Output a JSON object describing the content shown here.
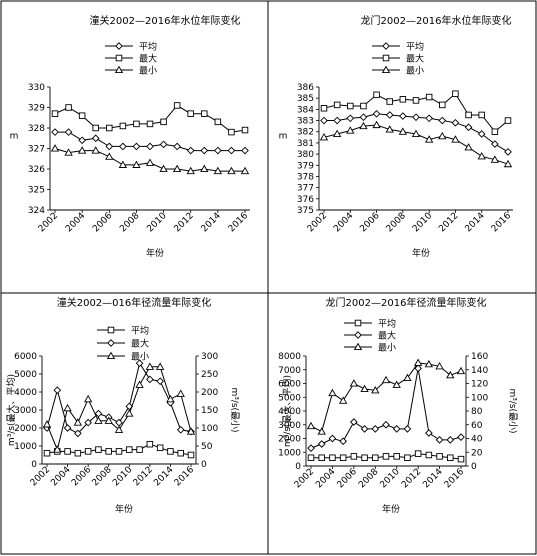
{
  "chart_data": [
    {
      "type": "line",
      "title": "潼关2002—2016年水位年际变化",
      "xlabel": "年份",
      "ylabel": "m",
      "x": [
        2002,
        2003,
        2004,
        2005,
        2006,
        2007,
        2008,
        2009,
        2010,
        2011,
        2012,
        2013,
        2014,
        2015,
        2016
      ],
      "xticks": [
        2002,
        2004,
        2006,
        2008,
        2010,
        2012,
        2014,
        2016
      ],
      "ylim": [
        324,
        330
      ],
      "yticks": [
        324,
        325,
        326,
        327,
        328,
        329,
        330
      ],
      "legend_position": "top-center",
      "series": [
        {
          "name": "平均",
          "marker": "diamond",
          "values": [
            327.8,
            327.8,
            327.4,
            327.5,
            327.1,
            327.1,
            327.1,
            327.1,
            327.2,
            327.1,
            326.9,
            326.9,
            326.9,
            326.9,
            326.9
          ]
        },
        {
          "name": "最大",
          "marker": "square",
          "values": [
            328.7,
            329.0,
            328.6,
            328.0,
            328.0,
            328.1,
            328.2,
            328.2,
            328.3,
            329.1,
            328.7,
            328.7,
            328.3,
            327.8,
            327.9
          ]
        },
        {
          "name": "最小",
          "marker": "triangle",
          "values": [
            327.0,
            326.8,
            326.9,
            326.9,
            326.6,
            326.2,
            326.2,
            326.3,
            326.0,
            326.0,
            325.9,
            326.0,
            325.9,
            325.9,
            325.9
          ]
        }
      ]
    },
    {
      "type": "line",
      "title": "龙门2002—2016年水位年际变化",
      "xlabel": "年份",
      "ylabel": "m",
      "x": [
        2002,
        2003,
        2004,
        2005,
        2006,
        2007,
        2008,
        2009,
        2010,
        2011,
        2012,
        2013,
        2014,
        2015,
        2016
      ],
      "xticks": [
        2002,
        2004,
        2006,
        2008,
        2010,
        2012,
        2014,
        2016
      ],
      "ylim": [
        375,
        386
      ],
      "yticks": [
        375,
        376,
        377,
        378,
        379,
        380,
        381,
        382,
        383,
        384,
        385,
        386
      ],
      "legend_position": "top-center",
      "series": [
        {
          "name": "平均",
          "marker": "diamond",
          "values": [
            383.0,
            383.0,
            383.2,
            383.3,
            383.6,
            383.5,
            383.4,
            383.3,
            383.2,
            383.0,
            382.8,
            382.4,
            381.8,
            380.9,
            380.2
          ]
        },
        {
          "name": "最大",
          "marker": "square",
          "values": [
            384.1,
            384.4,
            384.3,
            384.3,
            385.3,
            384.7,
            384.9,
            384.8,
            385.1,
            384.4,
            385.4,
            383.5,
            383.5,
            382.0,
            383.0
          ]
        },
        {
          "name": "最小",
          "marker": "triangle",
          "values": [
            381.5,
            381.8,
            382.1,
            382.5,
            382.6,
            382.2,
            382.0,
            381.8,
            381.3,
            381.6,
            381.3,
            380.6,
            379.8,
            379.5,
            379.1
          ]
        }
      ]
    },
    {
      "type": "line",
      "title": "潼关2002—016年径流量年际变化",
      "xlabel": "年份",
      "ylabel": "m³/s(最大、平均)",
      "ylabel_right": "m³/s(最小)",
      "x": [
        2002,
        2003,
        2004,
        2005,
        2006,
        2007,
        2008,
        2009,
        2010,
        2011,
        2012,
        2013,
        2014,
        2015,
        2016
      ],
      "xticks": [
        2002,
        2004,
        2006,
        2008,
        2010,
        2012,
        2014,
        2016
      ],
      "ylim": [
        0,
        6000
      ],
      "yticks": [
        0,
        1000,
        2000,
        3000,
        4000,
        5000,
        6000
      ],
      "ylim_right": [
        0,
        300
      ],
      "yticks_right": [
        0,
        50,
        100,
        150,
        200,
        250,
        300
      ],
      "legend_position": "top-center",
      "series": [
        {
          "name": "平均",
          "marker": "square",
          "axis": "left",
          "values": [
            600,
            700,
            700,
            600,
            700,
            800,
            700,
            700,
            800,
            800,
            1100,
            900,
            700,
            600,
            500
          ]
        },
        {
          "name": "最大",
          "marker": "diamond",
          "axis": "left",
          "values": [
            2000,
            4100,
            2000,
            1700,
            2300,
            2800,
            2600,
            2300,
            3200,
            5600,
            4700,
            4600,
            3400,
            1900,
            1800
          ]
        },
        {
          "name": "最小",
          "marker": "triangle",
          "axis": "right",
          "values": [
            110,
            40,
            155,
            115,
            180,
            120,
            120,
            95,
            140,
            220,
            270,
            270,
            180,
            195,
            90
          ]
        }
      ]
    },
    {
      "type": "line",
      "title": "龙门2002—2016年径流量年际变化",
      "xlabel": "年份",
      "ylabel": "m³/s(最大、平均)",
      "ylabel_right": "m³/s(最小)",
      "x": [
        2002,
        2003,
        2004,
        2005,
        2006,
        2007,
        2008,
        2009,
        2010,
        2011,
        2012,
        2013,
        2014,
        2015,
        2016
      ],
      "xticks": [
        2002,
        2004,
        2006,
        2008,
        2010,
        2012,
        2014,
        2016
      ],
      "ylim": [
        0,
        8000
      ],
      "yticks": [
        0,
        1000,
        2000,
        3000,
        4000,
        5000,
        6000,
        7000,
        8000
      ],
      "ylim_right": [
        0,
        160
      ],
      "yticks_right": [
        0,
        20,
        40,
        60,
        80,
        100,
        120,
        140,
        160
      ],
      "legend_position": "top-center",
      "series": [
        {
          "name": "平均",
          "marker": "square",
          "axis": "left",
          "values": [
            600,
            600,
            600,
            600,
            700,
            600,
            600,
            700,
            700,
            600,
            900,
            800,
            700,
            600,
            500
          ]
        },
        {
          "name": "最大",
          "marker": "diamond",
          "axis": "left",
          "values": [
            1300,
            1600,
            2000,
            1800,
            3200,
            2700,
            2700,
            3000,
            2700,
            2700,
            7100,
            2400,
            1900,
            1900,
            2100
          ]
        },
        {
          "name": "最小",
          "marker": "triangle",
          "axis": "right",
          "values": [
            58,
            50,
            106,
            95,
            120,
            112,
            110,
            125,
            118,
            128,
            150,
            148,
            145,
            132,
            138
          ]
        }
      ]
    }
  ]
}
